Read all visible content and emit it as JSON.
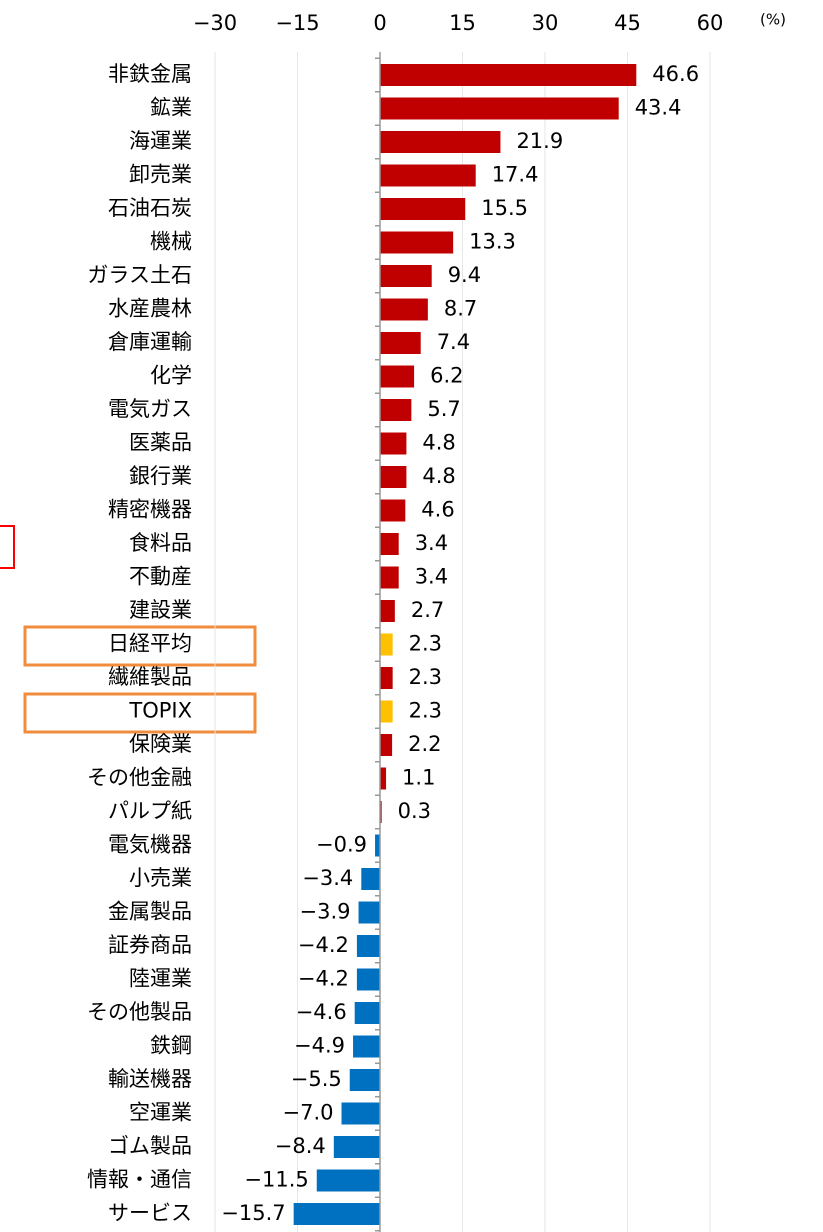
{
  "chart_data": {
    "type": "barh",
    "unit_label": "(%)",
    "categories": [
      "非鉄金属",
      "鉱業",
      "海運業",
      "卸売業",
      "石油石炭",
      "機械",
      "ガラス土石",
      "水産農林",
      "倉庫運輸",
      "化学",
      "電気ガス",
      "医薬品",
      "銀行業",
      "精密機器",
      "食料品",
      "不動産",
      "建設業",
      "日経平均",
      "繊維製品",
      "TOPIX",
      "保険業",
      "その他金融",
      "パルプ紙",
      "電気機器",
      "小売業",
      "金属製品",
      "証券商品",
      "陸運業",
      "その他製品",
      "鉄鋼",
      "輸送機器",
      "空運業",
      "ゴム製品",
      "情報・通信",
      "サービス"
    ],
    "values": [
      46.6,
      43.4,
      21.9,
      17.4,
      15.5,
      13.3,
      9.4,
      8.7,
      7.4,
      6.2,
      5.7,
      4.8,
      4.8,
      4.6,
      3.4,
      3.4,
      2.7,
      2.3,
      2.3,
      2.3,
      2.2,
      1.1,
      0.3,
      -0.9,
      -3.4,
      -3.9,
      -4.2,
      -4.2,
      -4.6,
      -4.9,
      -5.5,
      -7.0,
      -8.4,
      -11.5,
      -15.7
    ],
    "value_labels": [
      "46.6",
      "43.4",
      "21.9",
      "17.4",
      "15.5",
      "13.3",
      "9.4",
      "8.7",
      "7.4",
      "6.2",
      "5.7",
      "4.8",
      "4.8",
      "4.6",
      "3.4",
      "3.4",
      "2.7",
      "2.3",
      "2.3",
      "2.3",
      "2.2",
      "1.1",
      "0.3",
      "−0.9",
      "−3.4",
      "−3.9",
      "−4.2",
      "−4.2",
      "−4.6",
      "−4.9",
      "−5.5",
      "−7.0",
      "−8.4",
      "−11.5",
      "−15.7"
    ],
    "colors": [
      "#c00000",
      "#c00000",
      "#c00000",
      "#c00000",
      "#c00000",
      "#c00000",
      "#c00000",
      "#c00000",
      "#c00000",
      "#c00000",
      "#c00000",
      "#c00000",
      "#c00000",
      "#c00000",
      "#c00000",
      "#c00000",
      "#c00000",
      "#ffc000",
      "#c00000",
      "#ffc000",
      "#c00000",
      "#c00000",
      "#c00000",
      "#0070c0",
      "#0070c0",
      "#0070c0",
      "#0070c0",
      "#0070c0",
      "#0070c0",
      "#0070c0",
      "#0070c0",
      "#0070c0",
      "#0070c0",
      "#0070c0",
      "#0070c0"
    ],
    "xlim": [
      -30,
      60
    ],
    "xticks": [
      {
        "value": -30,
        "label": "−30"
      },
      {
        "value": -15,
        "label": "−15"
      },
      0,
      15,
      30,
      45,
      60
    ],
    "grid": true
  }
}
